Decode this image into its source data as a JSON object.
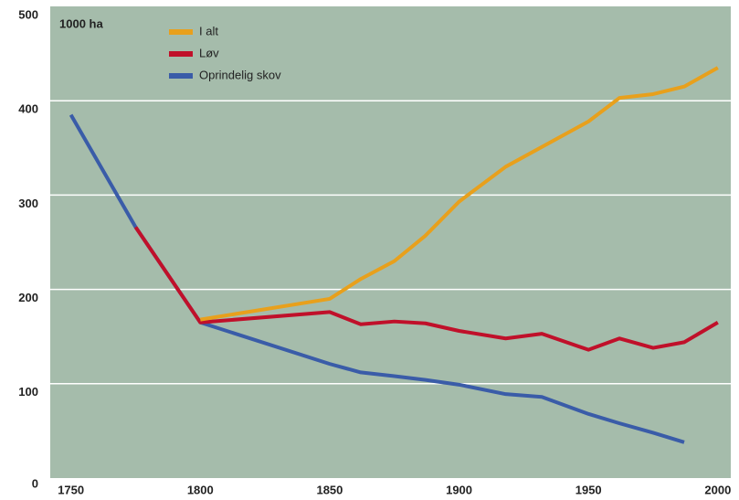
{
  "chart_data": {
    "type": "line",
    "y_label": "1000 ha",
    "x": [
      1750,
      1775,
      1800,
      1850,
      1862,
      1875,
      1887,
      1900,
      1918,
      1932,
      1950,
      1962,
      1975,
      1987,
      2000
    ],
    "series": [
      {
        "name": "Oprindelig skov",
        "color": "#3a5ca8",
        "values": [
          385,
          266,
          165,
          121,
          112,
          108,
          104,
          99,
          89,
          86,
          68,
          58,
          48,
          38,
          null
        ]
      },
      {
        "name": "Løv",
        "color": "#c0102a",
        "values": [
          null,
          266,
          165,
          176,
          163,
          166,
          164,
          156,
          148,
          153,
          136,
          148,
          138,
          144,
          165
        ]
      },
      {
        "name": "I alt",
        "color": "#e8a01c",
        "values": [
          null,
          null,
          168,
          190,
          211,
          230,
          257,
          293,
          330,
          351,
          378,
          403,
          407,
          415,
          435
        ]
      }
    ],
    "legend_order": [
      2,
      1,
      0
    ],
    "xlim": [
      1742,
      2005
    ],
    "xticks": [
      1750,
      1800,
      1850,
      1900,
      1950,
      2000
    ],
    "ylim": [
      0,
      500
    ],
    "yticks": [
      0,
      100,
      200,
      300,
      400,
      500
    ],
    "grid": true,
    "background": "#a5bcab"
  }
}
